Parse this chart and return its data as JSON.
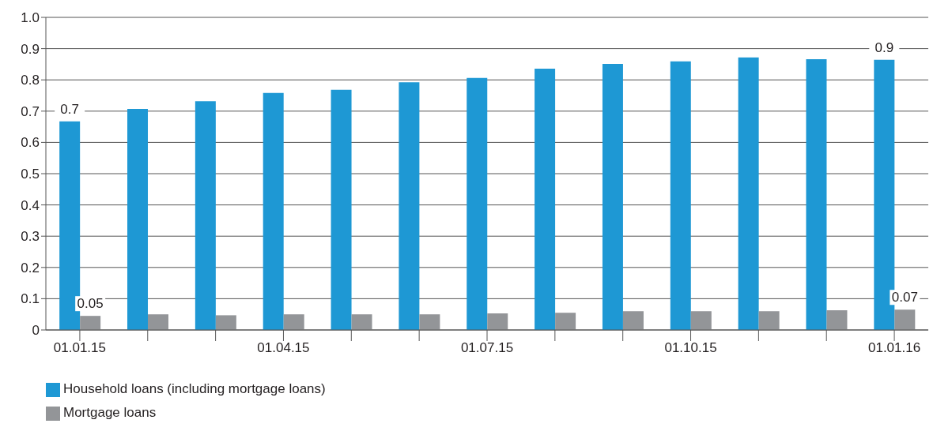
{
  "chart_data": {
    "type": "bar",
    "categories": [
      "01.01.15",
      null,
      null,
      "01.04.15",
      null,
      null,
      "01.07.15",
      null,
      null,
      "01.10.15",
      null,
      null,
      "01.01.16"
    ],
    "series": [
      {
        "name": "Household loans (including mortgage loans)",
        "color": "#1e98d4",
        "values": [
          0.667,
          0.707,
          0.732,
          0.758,
          0.768,
          0.792,
          0.806,
          0.836,
          0.851,
          0.859,
          0.872,
          0.866,
          0.864
        ],
        "value_labels": [
          "0.7",
          null,
          null,
          null,
          null,
          null,
          null,
          null,
          null,
          null,
          null,
          null,
          "0.9"
        ]
      },
      {
        "name": "Mortgage loans",
        "color": "#939598",
        "values": [
          0.045,
          0.05,
          0.047,
          0.05,
          0.05,
          0.05,
          0.053,
          0.055,
          0.06,
          0.06,
          0.06,
          0.063,
          0.065
        ],
        "value_labels": [
          "0.05",
          null,
          null,
          null,
          null,
          null,
          null,
          null,
          null,
          null,
          null,
          null,
          "0.07"
        ]
      }
    ],
    "ylim": [
      0,
      1.0
    ],
    "yticks": [
      0,
      {
        "value": 0.1,
        "label": "0.1"
      },
      {
        "value": 0.2,
        "label": "0.2"
      },
      {
        "value": 0.3,
        "label": "0.3"
      },
      {
        "value": 0.4,
        "label": "0.4"
      },
      {
        "value": 0.5,
        "label": "0.5"
      },
      {
        "value": 0.6,
        "label": "0.6"
      },
      {
        "value": 0.7,
        "label": "0.7"
      },
      {
        "value": 0.8,
        "label": "0.8"
      },
      {
        "value": 0.9,
        "label": "0.9"
      },
      {
        "value": 1.0,
        "label": "1.0"
      }
    ],
    "grid": "y",
    "legend": "bottom left"
  }
}
